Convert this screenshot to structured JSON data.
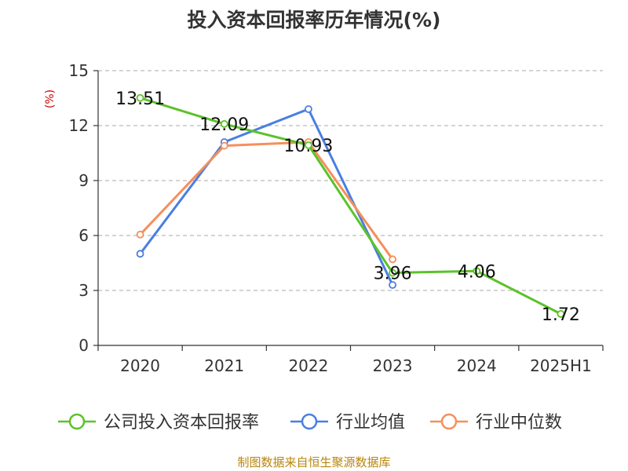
{
  "chart_data": {
    "type": "line",
    "title": "投入资本回报率历年情况(%)",
    "ylabel": "(%)",
    "xlabel": "",
    "categories": [
      "2020",
      "2021",
      "2022",
      "2023",
      "2024",
      "2025H1"
    ],
    "ylim": [
      0,
      15
    ],
    "yticks": [
      0,
      3,
      6,
      9,
      12,
      15
    ],
    "grid": true,
    "legend_position": "bottom",
    "series": [
      {
        "name": "公司投入资本回报率",
        "color": "#5cc22a",
        "values": [
          13.51,
          12.09,
          10.93,
          3.96,
          4.06,
          1.72
        ],
        "labels": [
          "13.51",
          "12.09",
          "10.93",
          "3.96",
          "4.06",
          "1.72"
        ]
      },
      {
        "name": "行业均值",
        "color": "#4a7fe0",
        "values": [
          5.0,
          11.1,
          12.9,
          3.3,
          null,
          null
        ],
        "labels": null
      },
      {
        "name": "行业中位数",
        "color": "#f58f5c",
        "values": [
          6.05,
          10.9,
          11.1,
          4.7,
          null,
          null
        ],
        "labels": null
      }
    ],
    "source": "制图数据来自恒生聚源数据库"
  }
}
